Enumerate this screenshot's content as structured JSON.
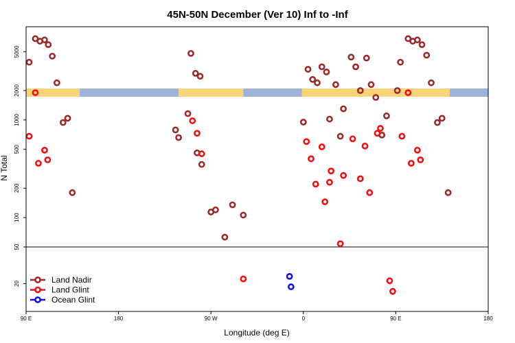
{
  "chart_data": {
    "type": "scatter",
    "title": "45N-50N December (Ver 10)   Inf to -Inf",
    "xlabel": "Longitude (deg E)",
    "ylabel": "N Total",
    "y_scale": "log",
    "xlim": [
      90,
      240
    ],
    "x_ticks": [
      {
        "value": 90,
        "label": "90 E"
      },
      {
        "value": 120,
        "label": "180"
      },
      {
        "value": 150,
        "label": "90 W"
      },
      {
        "value": 180,
        "label": "0"
      },
      {
        "value": 210,
        "label": "90 E"
      },
      {
        "value": 240,
        "label": "180"
      }
    ],
    "lower_panel": {
      "ylim": [
        10,
        50
      ],
      "y_ticks": [
        20,
        50
      ]
    },
    "upper_panel": {
      "ylim": [
        50,
        9000
      ],
      "y_ticks": [
        50,
        100,
        200,
        500,
        1000,
        2000,
        5000
      ]
    },
    "land_ocean_strip": {
      "land_color": "#f8d378",
      "ocean_color": "#9db3d8",
      "segments": [
        {
          "kind": "land",
          "x0": 90,
          "x1": 107.4
        },
        {
          "kind": "ocean",
          "x0": 107.4,
          "x1": 139.5
        },
        {
          "kind": "land",
          "x0": 139.5,
          "x1": 160.5
        },
        {
          "kind": "ocean",
          "x0": 160.5,
          "x1": 179.5
        },
        {
          "kind": "land",
          "x0": 179.5,
          "x1": 227.5
        },
        {
          "kind": "ocean",
          "x0": 227.5,
          "x1": 240
        }
      ]
    },
    "series": [
      {
        "name": "Land Nadir",
        "color": "#9a2b2b",
        "points": [
          [
            91,
            3900
          ],
          [
            93,
            6800
          ],
          [
            94.5,
            6400
          ],
          [
            96,
            6600
          ],
          [
            97.2,
            5900
          ],
          [
            98.5,
            4500
          ],
          [
            100,
            2400
          ],
          [
            102,
            940
          ],
          [
            103.5,
            1040
          ],
          [
            105,
            180
          ],
          [
            138.5,
            790
          ],
          [
            139.5,
            660
          ],
          [
            142.5,
            1160
          ],
          [
            143.5,
            4800
          ],
          [
            145,
            3000
          ],
          [
            146.5,
            2800
          ],
          [
            145.5,
            460
          ],
          [
            147,
            350
          ],
          [
            150,
            114
          ],
          [
            151.5,
            120
          ],
          [
            154.5,
            63
          ],
          [
            157,
            135
          ],
          [
            160.5,
            106
          ],
          [
            180,
            950
          ],
          [
            181.5,
            3300
          ],
          [
            183,
            2600
          ],
          [
            184.5,
            2400
          ],
          [
            186,
            3500
          ],
          [
            187.5,
            3100
          ],
          [
            188.5,
            1020
          ],
          [
            190.5,
            2300
          ],
          [
            193,
            1300
          ],
          [
            192,
            680
          ],
          [
            195.5,
            4400
          ],
          [
            197,
            3500
          ],
          [
            198.5,
            2000
          ],
          [
            200.5,
            4300
          ],
          [
            202,
            2300
          ],
          [
            203.5,
            1700
          ],
          [
            205.5,
            700
          ],
          [
            207,
            1100
          ],
          [
            210.5,
            2000
          ],
          [
            211.5,
            3900
          ],
          [
            214,
            6800
          ],
          [
            215.5,
            6400
          ],
          [
            217,
            6600
          ],
          [
            218.5,
            5900
          ],
          [
            220,
            4600
          ],
          [
            221.5,
            2400
          ],
          [
            223.5,
            940
          ],
          [
            225,
            1040
          ],
          [
            227,
            180
          ]
        ]
      },
      {
        "name": "Land Glint",
        "color": "#ee1111",
        "points": [
          [
            91,
            680
          ],
          [
            93,
            1900
          ],
          [
            94,
            360
          ],
          [
            96,
            490
          ],
          [
            97,
            390
          ],
          [
            144,
            980
          ],
          [
            145.5,
            730
          ],
          [
            147,
            450
          ],
          [
            160.5,
            22.5
          ],
          [
            181,
            600
          ],
          [
            182.5,
            400
          ],
          [
            184,
            220
          ],
          [
            186,
            530
          ],
          [
            187,
            145
          ],
          [
            189,
            300
          ],
          [
            188.5,
            230
          ],
          [
            193,
            270
          ],
          [
            192,
            54
          ],
          [
            196,
            640
          ],
          [
            198.5,
            250
          ],
          [
            200,
            540
          ],
          [
            201.5,
            180
          ],
          [
            204,
            730
          ],
          [
            205,
            820
          ],
          [
            208,
            21.5
          ],
          [
            209,
            16.5
          ],
          [
            212,
            680
          ],
          [
            214,
            1900
          ],
          [
            215,
            360
          ],
          [
            217,
            490
          ],
          [
            218,
            390
          ]
        ]
      },
      {
        "name": "Ocean Glint",
        "color": "#1010e8",
        "points": [
          [
            175.5,
            24
          ],
          [
            176,
            18.5
          ]
        ]
      }
    ],
    "legend": {
      "position": "bottom-left",
      "entries": [
        "Land Nadir",
        "Land Glint",
        "Ocean Glint"
      ]
    }
  }
}
